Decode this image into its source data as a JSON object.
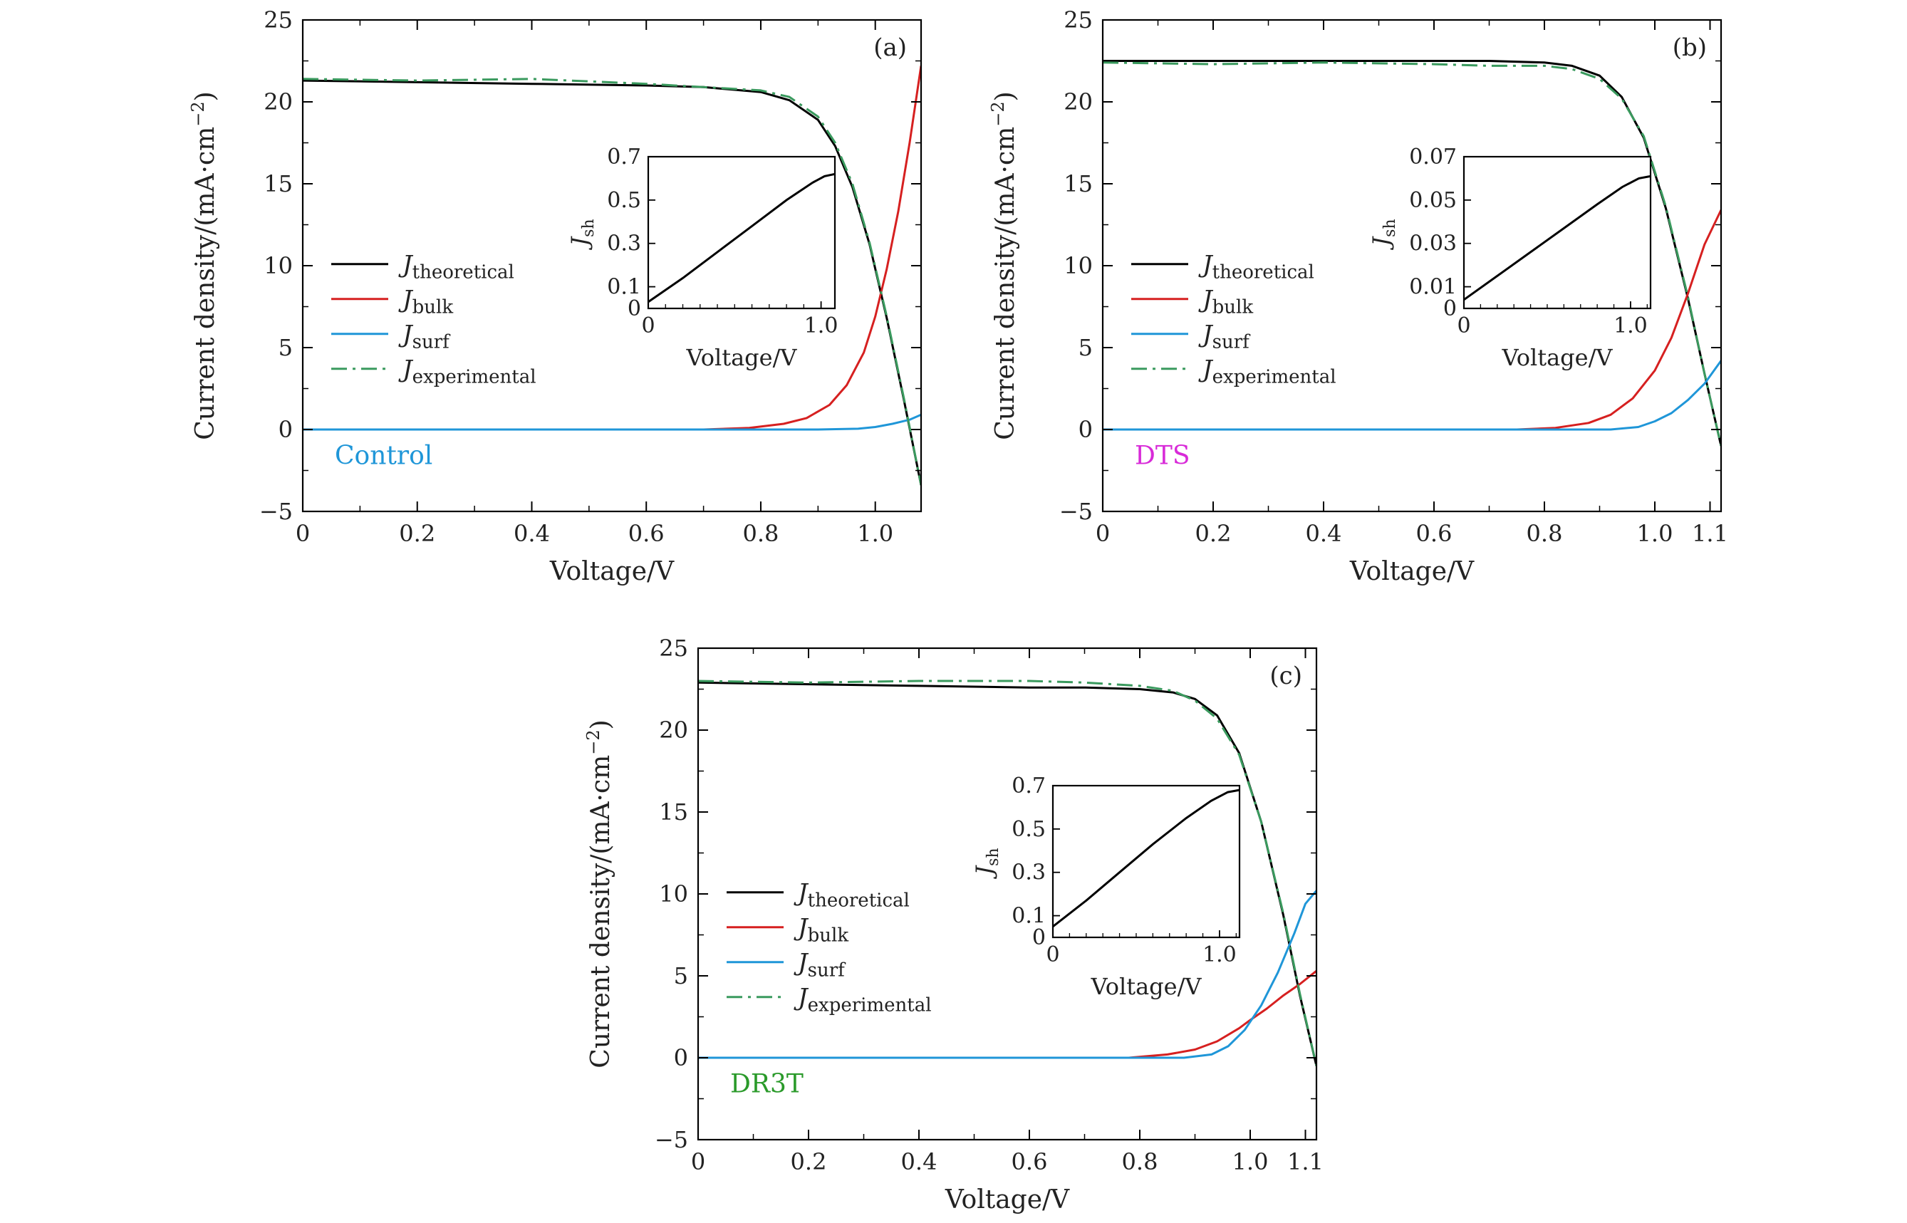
{
  "chart_data": [
    {
      "type": "line",
      "panel_label": "(a)",
      "sample_label": "Control",
      "sample_color": "#1f96d8",
      "xlabel": "Voltage/V",
      "ylabel": "Current density/(mA·cm",
      "ylabel_exp": "−2",
      "ylabel_close": ")",
      "xlim": [
        0,
        1.08
      ],
      "ylim": [
        -5,
        25
      ],
      "xticks": [
        0,
        0.2,
        0.4,
        0.6,
        0.8,
        1.0
      ],
      "xtick_labels": [
        "0",
        "0.2",
        "0.4",
        "0.6",
        "0.8",
        "1.0"
      ],
      "yticks": [
        -5,
        0,
        5,
        10,
        15,
        20,
        25
      ],
      "ytick_labels": [
        "−5",
        "0",
        "5",
        "10",
        "15",
        "20",
        "25"
      ],
      "legend_position": "center-left",
      "series": [
        {
          "name": "J",
          "sub": "theoretical",
          "color": "#000000",
          "dash": "solid",
          "x": [
            0,
            0.2,
            0.4,
            0.6,
            0.7,
            0.8,
            0.85,
            0.9,
            0.93,
            0.96,
            0.99,
            1.02,
            1.05,
            1.08
          ],
          "y": [
            21.3,
            21.2,
            21.1,
            21.0,
            20.9,
            20.6,
            20.1,
            18.9,
            17.3,
            14.8,
            11.3,
            6.8,
            1.8,
            -3.4
          ]
        },
        {
          "name": "J",
          "sub": "bulk",
          "color": "#d62020",
          "dash": "solid",
          "x": [
            0,
            0.7,
            0.78,
            0.84,
            0.88,
            0.92,
            0.95,
            0.98,
            1.0,
            1.02,
            1.04,
            1.06,
            1.08
          ],
          "y": [
            0,
            0,
            0.1,
            0.35,
            0.7,
            1.5,
            2.7,
            4.7,
            6.9,
            9.8,
            13.3,
            17.5,
            22.2
          ]
        },
        {
          "name": "J",
          "sub": "surf",
          "color": "#1f96d8",
          "dash": "solid",
          "x": [
            0,
            0.9,
            0.97,
            1.0,
            1.03,
            1.06,
            1.08
          ],
          "y": [
            0,
            0,
            0.05,
            0.15,
            0.35,
            0.6,
            0.9
          ]
        },
        {
          "name": "J",
          "sub": "experimental",
          "color": "#3a9a5e",
          "dash": "dashdot",
          "x": [
            0,
            0.2,
            0.4,
            0.6,
            0.7,
            0.8,
            0.85,
            0.9,
            0.93,
            0.96,
            0.99,
            1.02,
            1.05,
            1.08
          ],
          "y": [
            21.4,
            21.3,
            21.4,
            21.1,
            20.9,
            20.7,
            20.3,
            19.1,
            17.5,
            15.0,
            11.4,
            6.9,
            1.9,
            -3.4
          ]
        }
      ],
      "inset": {
        "xlabel": "Voltage/V",
        "ylabel": "J",
        "ylabel_sub": "sh",
        "xlim": [
          0,
          1.08
        ],
        "ylim": [
          0,
          0.7
        ],
        "xticks": [
          0,
          1.0
        ],
        "xtick_labels": [
          "0",
          "1.0"
        ],
        "yticks": [
          0,
          0.1,
          0.3,
          0.5,
          0.7
        ],
        "ytick_labels": [
          "0",
          "0.1",
          "0.3",
          "0.5",
          "0.7"
        ],
        "series": {
          "color": "#000000",
          "x": [
            0,
            0.2,
            0.4,
            0.6,
            0.8,
            0.95,
            1.02,
            1.08
          ],
          "y": [
            0.03,
            0.14,
            0.26,
            0.38,
            0.5,
            0.58,
            0.61,
            0.62
          ]
        }
      }
    },
    {
      "type": "line",
      "panel_label": "(b)",
      "sample_label": "DTS",
      "sample_color": "#d82ad8",
      "xlabel": "Voltage/V",
      "ylabel": "Current density/(mA·cm",
      "ylabel_exp": "−2",
      "ylabel_close": ")",
      "xlim": [
        0,
        1.12
      ],
      "ylim": [
        -5,
        25
      ],
      "xticks": [
        0,
        0.2,
        0.4,
        0.6,
        0.8,
        1.0,
        1.1
      ],
      "xtick_labels": [
        "0",
        "0.2",
        "0.4",
        "0.6",
        "0.8",
        "1.0",
        "1.1"
      ],
      "yticks": [
        -5,
        0,
        5,
        10,
        15,
        20,
        25
      ],
      "ytick_labels": [
        "−5",
        "0",
        "5",
        "10",
        "15",
        "20",
        "25"
      ],
      "legend_position": "center-left",
      "series": [
        {
          "name": "J",
          "sub": "theoretical",
          "color": "#000000",
          "dash": "solid",
          "x": [
            0,
            0.2,
            0.4,
            0.6,
            0.7,
            0.8,
            0.85,
            0.9,
            0.94,
            0.98,
            1.02,
            1.06,
            1.09,
            1.12
          ],
          "y": [
            22.5,
            22.5,
            22.5,
            22.5,
            22.5,
            22.4,
            22.2,
            21.6,
            20.3,
            17.8,
            13.5,
            8.0,
            3.4,
            -1.0
          ]
        },
        {
          "name": "J",
          "sub": "bulk",
          "color": "#d62020",
          "dash": "solid",
          "x": [
            0,
            0.75,
            0.82,
            0.88,
            0.92,
            0.96,
            1.0,
            1.03,
            1.06,
            1.09,
            1.12
          ],
          "y": [
            0,
            0,
            0.1,
            0.4,
            0.9,
            1.9,
            3.6,
            5.6,
            8.3,
            11.3,
            13.4
          ]
        },
        {
          "name": "J",
          "sub": "surf",
          "color": "#1f96d8",
          "dash": "solid",
          "x": [
            0,
            0.92,
            0.97,
            1.0,
            1.03,
            1.06,
            1.09,
            1.12
          ],
          "y": [
            0,
            0,
            0.15,
            0.5,
            1.0,
            1.8,
            2.8,
            4.2
          ]
        },
        {
          "name": "J",
          "sub": "experimental",
          "color": "#3a9a5e",
          "dash": "dashdot",
          "x": [
            0,
            0.2,
            0.4,
            0.6,
            0.7,
            0.8,
            0.85,
            0.9,
            0.94,
            0.98,
            1.02,
            1.06,
            1.09,
            1.12
          ],
          "y": [
            22.4,
            22.3,
            22.4,
            22.3,
            22.2,
            22.2,
            22.0,
            21.4,
            20.2,
            17.9,
            13.6,
            8.1,
            3.4,
            -1.0
          ]
        }
      ],
      "inset": {
        "xlabel": "Voltage/V",
        "ylabel": "J",
        "ylabel_sub": "sh",
        "xlim": [
          0,
          1.12
        ],
        "ylim": [
          0,
          0.07
        ],
        "xticks": [
          0,
          1.0
        ],
        "xtick_labels": [
          "0",
          "1.0"
        ],
        "yticks": [
          0,
          0.01,
          0.03,
          0.05,
          0.07
        ],
        "ytick_labels": [
          "0",
          "0.01",
          "0.03",
          "0.05",
          "0.07"
        ],
        "series": {
          "color": "#000000",
          "x": [
            0,
            0.2,
            0.4,
            0.6,
            0.8,
            0.95,
            1.05,
            1.12
          ],
          "y": [
            0.004,
            0.015,
            0.026,
            0.037,
            0.048,
            0.056,
            0.06,
            0.061
          ]
        }
      }
    },
    {
      "type": "line",
      "panel_label": "(c)",
      "sample_label": "DR3T",
      "sample_color": "#2a9a2a",
      "xlabel": "Voltage/V",
      "ylabel": "Current density/(mA·cm",
      "ylabel_exp": "−2",
      "ylabel_close": ")",
      "xlim": [
        0,
        1.12
      ],
      "ylim": [
        -5,
        25
      ],
      "xticks": [
        0,
        0.2,
        0.4,
        0.6,
        0.8,
        1.0,
        1.1
      ],
      "xtick_labels": [
        "0",
        "0.2",
        "0.4",
        "0.6",
        "0.8",
        "1.0",
        "1.1"
      ],
      "yticks": [
        -5,
        0,
        5,
        10,
        15,
        20,
        25
      ],
      "ytick_labels": [
        "−5",
        "0",
        "5",
        "10",
        "15",
        "20",
        "25"
      ],
      "legend_position": "center-left",
      "series": [
        {
          "name": "J",
          "sub": "theoretical",
          "color": "#000000",
          "dash": "solid",
          "x": [
            0,
            0.2,
            0.4,
            0.6,
            0.7,
            0.8,
            0.86,
            0.9,
            0.94,
            0.98,
            1.02,
            1.06,
            1.09,
            1.12
          ],
          "y": [
            22.9,
            22.8,
            22.7,
            22.6,
            22.6,
            22.5,
            22.3,
            21.9,
            20.9,
            18.6,
            14.4,
            8.7,
            3.8,
            -0.5
          ]
        },
        {
          "name": "J",
          "sub": "bulk",
          "color": "#d62020",
          "dash": "solid",
          "x": [
            0,
            0.78,
            0.85,
            0.9,
            0.94,
            0.98,
            1.0,
            1.03,
            1.06,
            1.09,
            1.12
          ],
          "y": [
            0,
            0,
            0.2,
            0.5,
            1.0,
            1.8,
            2.3,
            3.0,
            3.8,
            4.5,
            5.3
          ]
        },
        {
          "name": "J",
          "sub": "surf",
          "color": "#1f96d8",
          "dash": "solid",
          "x": [
            0,
            0.88,
            0.93,
            0.96,
            0.99,
            1.02,
            1.05,
            1.08,
            1.1,
            1.12
          ],
          "y": [
            0,
            0,
            0.2,
            0.7,
            1.7,
            3.2,
            5.2,
            7.6,
            9.4,
            10.2
          ]
        },
        {
          "name": "J",
          "sub": "experimental",
          "color": "#3a9a5e",
          "dash": "dashdot",
          "x": [
            0,
            0.2,
            0.4,
            0.6,
            0.7,
            0.8,
            0.86,
            0.9,
            0.94,
            0.98,
            1.02,
            1.06,
            1.09,
            1.12
          ],
          "y": [
            23.0,
            22.9,
            23.0,
            23.0,
            22.9,
            22.7,
            22.4,
            21.8,
            20.7,
            18.5,
            14.4,
            8.8,
            3.9,
            -0.5
          ]
        }
      ],
      "inset": {
        "xlabel": "Voltage/V",
        "ylabel": "J",
        "ylabel_sub": "sh",
        "xlim": [
          0,
          1.12
        ],
        "ylim": [
          0,
          0.7
        ],
        "xticks": [
          0,
          1.0
        ],
        "xtick_labels": [
          "0",
          "1.0"
        ],
        "yticks": [
          0,
          0.1,
          0.3,
          0.5,
          0.7
        ],
        "ytick_labels": [
          "0",
          "0.1",
          "0.3",
          "0.5",
          "0.7"
        ],
        "series": {
          "color": "#000000",
          "x": [
            0,
            0.2,
            0.4,
            0.6,
            0.8,
            0.95,
            1.05,
            1.12
          ],
          "y": [
            0.05,
            0.17,
            0.3,
            0.43,
            0.55,
            0.63,
            0.67,
            0.68
          ]
        }
      }
    }
  ]
}
